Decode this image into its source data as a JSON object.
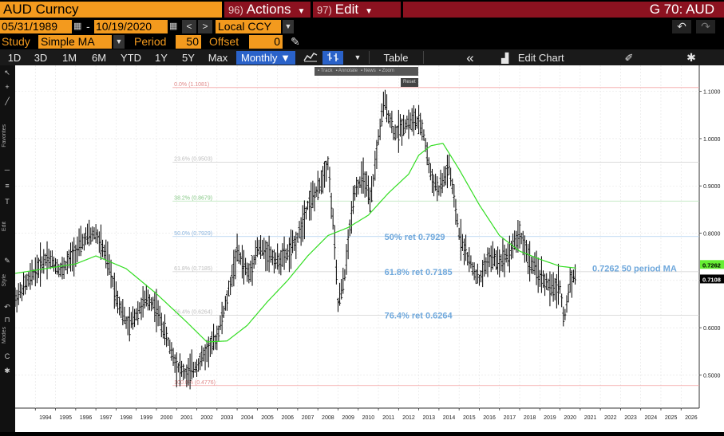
{
  "header": {
    "security": "AUD Curncy",
    "actions_num": "96)",
    "actions_label": "Actions",
    "edit_num": "97)",
    "edit_label": "Edit",
    "page_code": "G 70: AUD"
  },
  "range": {
    "start_date": "05/31/1989",
    "dash": "-",
    "end_date": "10/19/2020",
    "currency": "Local CCY"
  },
  "study": {
    "study_label": "Study",
    "study_value": "Simple MA",
    "period_label": "Period",
    "period_value": "50",
    "offset_label": "Offset",
    "offset_value": "0"
  },
  "periods": [
    "1D",
    "3D",
    "1M",
    "6M",
    "YTD",
    "1Y",
    "5Y",
    "Max"
  ],
  "frequency": "Monthly ▼",
  "toolbar": {
    "table_label": "Table",
    "collapse_label": "«",
    "edit_chart_label": "Edit Chart"
  },
  "mini_toolbar": {
    "items": [
      "Track",
      "Annotate",
      "News",
      "Zoom"
    ],
    "reset": "Reset"
  },
  "left_strip": {
    "favorites": "Favorites",
    "edit": "Edit",
    "style": "Style",
    "modes": "Modes"
  },
  "colors": {
    "accent_orange": "#f39a1e",
    "menu_red": "#8c1220",
    "price_bars": "#000000",
    "moving_average": "#33dd22",
    "annotation_text": "#6fa8dc",
    "fib_line_pink": "#f4a4a4",
    "fib_line_green": "#b6e4b6",
    "fib_line_blue": "#b0d0f0",
    "last_price_tag": "#000000",
    "ma_price_tag": "#66ee33"
  },
  "chart_data": {
    "type": "ohlc bars with moving average",
    "frequency": "monthly",
    "x_range": [
      1993.0,
      2026.9
    ],
    "ylim": [
      0.43,
      1.155
    ],
    "grid": true,
    "x_ticks": [
      "1994",
      "1995",
      "1996",
      "1997",
      "1998",
      "1999",
      "2000",
      "2001",
      "2002",
      "2003",
      "2004",
      "2005",
      "2006",
      "2007",
      "2008",
      "2009",
      "2010",
      "2011",
      "2012",
      "2013",
      "2014",
      "2015",
      "2016",
      "2017",
      "2018",
      "2019",
      "2020",
      "2021",
      "2022",
      "2023",
      "2024",
      "2025",
      "2026"
    ],
    "y_ticks": [
      "1.1000",
      "1.0000",
      "0.9000",
      "0.8000",
      "0.7000",
      "0.6000",
      "0.5000"
    ],
    "y_tick_values": [
      1.1,
      1.0,
      0.9,
      0.8,
      0.7,
      0.6,
      0.5
    ],
    "price_keypoints": [
      [
        1993.0,
        0.66
      ],
      [
        1994.0,
        0.72
      ],
      [
        1994.6,
        0.75
      ],
      [
        1995.3,
        0.72
      ],
      [
        1995.8,
        0.75
      ],
      [
        1996.5,
        0.79
      ],
      [
        1997.0,
        0.8
      ],
      [
        1997.6,
        0.74
      ],
      [
        1998.0,
        0.67
      ],
      [
        1998.6,
        0.6
      ],
      [
        1999.0,
        0.63
      ],
      [
        1999.5,
        0.66
      ],
      [
        1999.9,
        0.65
      ],
      [
        2000.5,
        0.58
      ],
      [
        2001.0,
        0.52
      ],
      [
        2001.5,
        0.5
      ],
      [
        2002.0,
        0.52
      ],
      [
        2002.5,
        0.55
      ],
      [
        2003.0,
        0.58
      ],
      [
        2003.5,
        0.66
      ],
      [
        2004.0,
        0.76
      ],
      [
        2004.6,
        0.71
      ],
      [
        2005.0,
        0.77
      ],
      [
        2005.5,
        0.76
      ],
      [
        2006.0,
        0.74
      ],
      [
        2006.6,
        0.76
      ],
      [
        2007.0,
        0.79
      ],
      [
        2007.5,
        0.86
      ],
      [
        2008.0,
        0.89
      ],
      [
        2008.5,
        0.95
      ],
      [
        2008.8,
        0.8
      ],
      [
        2009.0,
        0.65
      ],
      [
        2009.3,
        0.7
      ],
      [
        2009.8,
        0.89
      ],
      [
        2010.3,
        0.92
      ],
      [
        2010.6,
        0.86
      ],
      [
        2011.0,
        1.0
      ],
      [
        2011.3,
        1.08
      ],
      [
        2011.8,
        1.01
      ],
      [
        2012.3,
        1.03
      ],
      [
        2012.8,
        1.04
      ],
      [
        2013.2,
        1.02
      ],
      [
        2013.6,
        0.92
      ],
      [
        2014.0,
        0.89
      ],
      [
        2014.5,
        0.94
      ],
      [
        2015.0,
        0.8
      ],
      [
        2015.5,
        0.74
      ],
      [
        2016.0,
        0.7
      ],
      [
        2016.5,
        0.75
      ],
      [
        2017.0,
        0.74
      ],
      [
        2017.5,
        0.76
      ],
      [
        2018.0,
        0.8
      ],
      [
        2018.5,
        0.74
      ],
      [
        2019.0,
        0.71
      ],
      [
        2019.6,
        0.68
      ],
      [
        2020.0,
        0.69
      ],
      [
        2020.2,
        0.61
      ],
      [
        2020.5,
        0.7
      ],
      [
        2020.8,
        0.714
      ]
    ],
    "moving_average_keypoints": [
      [
        1993.0,
        0.715
      ],
      [
        1994.5,
        0.725
      ],
      [
        1996.0,
        0.735
      ],
      [
        1997.0,
        0.752
      ],
      [
        1998.5,
        0.725
      ],
      [
        2000.0,
        0.672
      ],
      [
        2001.5,
        0.612
      ],
      [
        2002.5,
        0.57
      ],
      [
        2003.5,
        0.572
      ],
      [
        2004.5,
        0.605
      ],
      [
        2005.5,
        0.655
      ],
      [
        2006.5,
        0.7
      ],
      [
        2007.5,
        0.752
      ],
      [
        2008.5,
        0.795
      ],
      [
        2009.5,
        0.812
      ],
      [
        2010.5,
        0.838
      ],
      [
        2011.5,
        0.885
      ],
      [
        2012.5,
        0.925
      ],
      [
        2013.0,
        0.965
      ],
      [
        2013.6,
        0.985
      ],
      [
        2014.2,
        0.99
      ],
      [
        2015.0,
        0.935
      ],
      [
        2016.0,
        0.86
      ],
      [
        2017.0,
        0.795
      ],
      [
        2018.0,
        0.762
      ],
      [
        2019.0,
        0.745
      ],
      [
        2020.0,
        0.73
      ],
      [
        2020.8,
        0.7262
      ]
    ],
    "fib_levels": [
      {
        "value": 1.1081,
        "label": "0.0% (1.1081)",
        "color": "pink"
      },
      {
        "value": 0.9503,
        "label": "23.6% (0.9503)",
        "color": "grey"
      },
      {
        "value": 0.8679,
        "label": "38.2% (0.8679)",
        "color": "green"
      },
      {
        "value": 0.7929,
        "label": "50.0% (0.7929)",
        "color": "blue"
      },
      {
        "value": 0.7185,
        "label": "61.8% (0.7185)",
        "color": "grey"
      },
      {
        "value": 0.6264,
        "label": "76.4% (0.6264)",
        "color": "grey"
      },
      {
        "value": 0.4776,
        "label": "100.0% (0.4776)",
        "color": "pink"
      }
    ],
    "annotations": [
      {
        "text": "50% ret 0.7929",
        "x": 2011.3,
        "y": 0.7929
      },
      {
        "text": "61.8% ret 0.7185",
        "x": 2011.3,
        "y": 0.7185
      },
      {
        "text": "76.4% ret 0.6264",
        "x": 2011.3,
        "y": 0.6264
      },
      {
        "text": "0.7262 50 period MA",
        "x": 2021.6,
        "y": 0.7262
      }
    ],
    "last_price_tags": [
      {
        "text": "0.7262",
        "value": 0.7262,
        "kind": "ma"
      },
      {
        "text": "0.7108",
        "value": 0.7108,
        "kind": "last"
      }
    ]
  }
}
